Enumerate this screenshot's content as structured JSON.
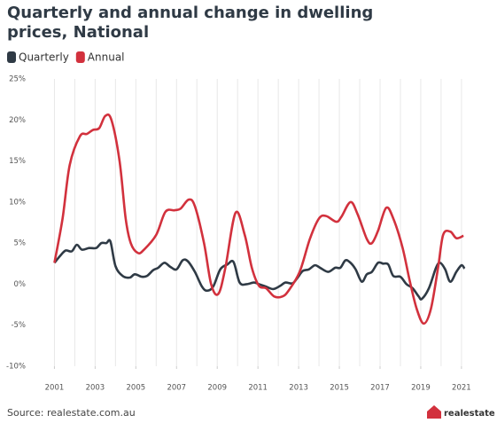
{
  "chart_data": {
    "type": "line",
    "title": "Quarterly and annual change in dwelling prices, National",
    "source": "Source: realestate.com.au",
    "logo": "realestate",
    "xlim": [
      2000.85,
      2022.05
    ],
    "xticks": [
      2001,
      2003,
      2005,
      2007,
      2009,
      2011,
      2013,
      2015,
      2017,
      2019,
      2021
    ],
    "xgrid": [
      2001,
      2002,
      2003,
      2004,
      2005,
      2006,
      2007,
      2008,
      2009,
      2010,
      2011,
      2012,
      2013,
      2014,
      2015,
      2016,
      2017,
      2018,
      2019,
      2020,
      2021
    ],
    "ylim": [
      -10,
      25
    ],
    "yticks": [
      {
        "value": -10,
        "label": "-10%"
      },
      {
        "value": -5,
        "label": "-5%"
      },
      {
        "value": 0,
        "label": "0%"
      },
      {
        "value": 5,
        "label": "5%"
      },
      {
        "value": 10,
        "label": "10%"
      },
      {
        "value": 15,
        "label": "15%"
      },
      {
        "value": 20,
        "label": "20%"
      },
      {
        "value": 25,
        "label": "25%"
      }
    ],
    "series": [
      {
        "name": "Quarterly",
        "color": "#2f3a45",
        "x": [
          2001,
          2001.3,
          2001.55,
          2001.85,
          2002.1,
          2002.35,
          2002.7,
          2003.05,
          2003.3,
          2003.55,
          2003.75,
          2004.0,
          2004.35,
          2004.7,
          2004.95,
          2005.3,
          2005.55,
          2005.85,
          2006.1,
          2006.4,
          2006.7,
          2007.0,
          2007.3,
          2007.55,
          2007.9,
          2008.25,
          2008.5,
          2008.8,
          2009.15,
          2009.5,
          2009.8,
          2010.1,
          2010.45,
          2010.8,
          2011.05,
          2011.4,
          2011.75,
          2012.1,
          2012.35,
          2012.7,
          2012.95,
          2013.2,
          2013.5,
          2013.8,
          2014.05,
          2014.45,
          2014.8,
          2015.05,
          2015.3,
          2015.55,
          2015.8,
          2016.1,
          2016.35,
          2016.6,
          2016.9,
          2017.15,
          2017.4,
          2017.65,
          2018.0,
          2018.3,
          2018.6,
          2018.9,
          2019.05,
          2019.4,
          2019.75,
          2019.95,
          2020.2,
          2020.45,
          2020.75,
          2021.0,
          2021.15
        ],
        "values": [
          2.6,
          3.5,
          4.1,
          4.0,
          4.8,
          4.2,
          4.4,
          4.4,
          5.0,
          5.0,
          5.2,
          2.2,
          1.0,
          0.8,
          1.2,
          0.9,
          1.0,
          1.7,
          2.0,
          2.6,
          2.1,
          1.8,
          2.9,
          2.8,
          1.5,
          -0.3,
          -0.8,
          -0.3,
          1.8,
          2.4,
          2.7,
          0.2,
          0.0,
          0.2,
          0.0,
          -0.3,
          -0.6,
          -0.2,
          0.2,
          0.1,
          0.8,
          1.6,
          1.8,
          2.3,
          2.0,
          1.5,
          2.0,
          2.0,
          2.9,
          2.6,
          1.8,
          0.3,
          1.2,
          1.5,
          2.6,
          2.5,
          2.4,
          1.0,
          0.9,
          0.0,
          -0.5,
          -1.5,
          -1.8,
          -0.5,
          2.0,
          2.6,
          1.8,
          0.3,
          1.5,
          2.3,
          1.9
        ]
      },
      {
        "name": "Annual",
        "color": "#d2313d",
        "x": [
          2001,
          2001.4,
          2001.75,
          2002.25,
          2002.6,
          2002.9,
          2003.2,
          2003.5,
          2003.8,
          2004.2,
          2004.5,
          2004.75,
          2005.1,
          2005.4,
          2006.0,
          2006.45,
          2006.9,
          2007.2,
          2007.6,
          2007.9,
          2008.35,
          2008.7,
          2009.05,
          2009.4,
          2009.9,
          2010.35,
          2010.7,
          2011.05,
          2011.4,
          2011.8,
          2012.2,
          2012.5,
          2013.05,
          2013.55,
          2014.0,
          2014.35,
          2014.85,
          2015.1,
          2015.55,
          2015.9,
          2016.35,
          2016.6,
          2016.9,
          2017.3,
          2017.65,
          2018.1,
          2018.45,
          2018.8,
          2019.15,
          2019.5,
          2019.85,
          2020.1,
          2020.45,
          2020.75,
          2021.1
        ],
        "values": [
          2.6,
          8,
          14.5,
          18,
          18.3,
          18.8,
          19,
          20.5,
          20,
          15,
          8,
          5,
          3.8,
          4.2,
          6,
          8.8,
          9.0,
          9.2,
          10.3,
          9.5,
          5,
          0,
          -1.2,
          2,
          8.7,
          6,
          2,
          -0.2,
          -0.5,
          -1.5,
          -1.5,
          -0.8,
          1.5,
          5.5,
          8.0,
          8.3,
          7.6,
          8.2,
          10.0,
          8.5,
          5.5,
          5.0,
          6.5,
          9.3,
          8.0,
          4.5,
          0.5,
          -3.0,
          -4.8,
          -3,
          2,
          6.0,
          6.4,
          5.6,
          5.9
        ]
      }
    ]
  }
}
